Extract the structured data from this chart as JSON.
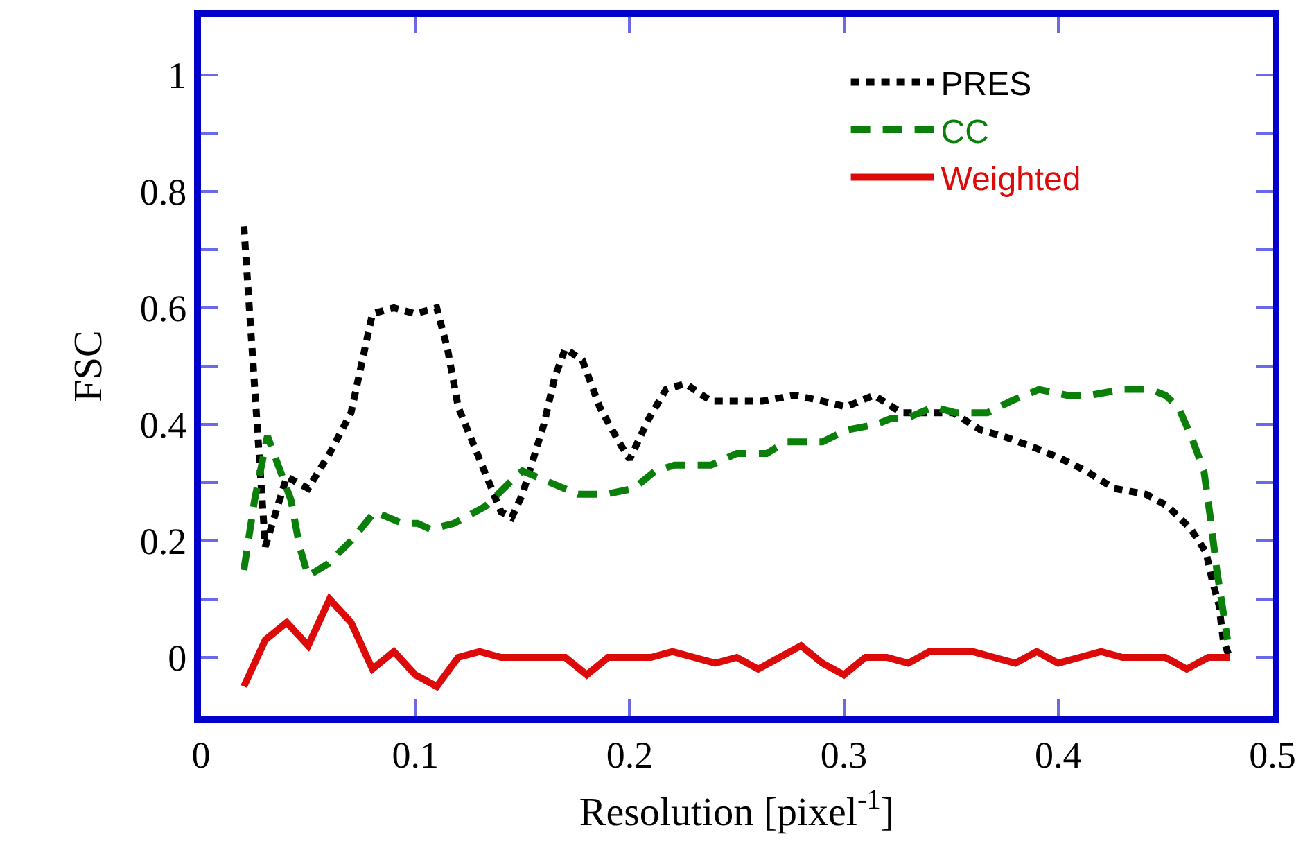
{
  "chart_data": {
    "type": "line",
    "xlabel": "Resolution [pixel$^{-1}$]",
    "ylabel": "FSC",
    "x": [
      0.02,
      0.03,
      0.04,
      0.05,
      0.06,
      0.07,
      0.08,
      0.09,
      0.1,
      0.11,
      0.12,
      0.13,
      0.14,
      0.15,
      0.16,
      0.17,
      0.18,
      0.19,
      0.2,
      0.21,
      0.22,
      0.23,
      0.24,
      0.25,
      0.26,
      0.27,
      0.28,
      0.29,
      0.3,
      0.31,
      0.32,
      0.33,
      0.34,
      0.35,
      0.36,
      0.37,
      0.38,
      0.39,
      0.4,
      0.41,
      0.42,
      0.43,
      0.44,
      0.45,
      0.46,
      0.47,
      0.48
    ],
    "series": [
      {
        "name": "PRES",
        "color": "#000000",
        "line_style": "dotted",
        "x": [
          0.02,
          0.03,
          0.04,
          0.05,
          0.06,
          0.07,
          0.08,
          0.09,
          0.1,
          0.11,
          0.115,
          0.12,
          0.13,
          0.14,
          0.145,
          0.15,
          0.16,
          0.165,
          0.17,
          0.178,
          0.186,
          0.195,
          0.2,
          0.209,
          0.217,
          0.226,
          0.238,
          0.25,
          0.262,
          0.277,
          0.29,
          0.301,
          0.314,
          0.327,
          0.338,
          0.351,
          0.364,
          0.374,
          0.389,
          0.402,
          0.413,
          0.426,
          0.441,
          0.451,
          0.462,
          0.469,
          0.472,
          0.475,
          0.477,
          0.48
        ],
        "values": [
          0.74,
          0.19,
          0.31,
          0.29,
          0.35,
          0.42,
          0.59,
          0.6,
          0.59,
          0.6,
          0.53,
          0.43,
          0.34,
          0.25,
          0.24,
          0.28,
          0.4,
          0.48,
          0.53,
          0.51,
          0.43,
          0.37,
          0.34,
          0.41,
          0.46,
          0.47,
          0.44,
          0.44,
          0.44,
          0.45,
          0.44,
          0.43,
          0.45,
          0.42,
          0.42,
          0.42,
          0.39,
          0.38,
          0.36,
          0.34,
          0.32,
          0.29,
          0.28,
          0.26,
          0.22,
          0.18,
          0.13,
          0.09,
          0.03,
          0.0
        ]
      },
      {
        "name": "CC",
        "color": "#0a800a",
        "line_style": "dashed",
        "x": [
          0.02,
          0.025,
          0.031,
          0.035,
          0.042,
          0.046,
          0.05,
          0.059,
          0.07,
          0.081,
          0.094,
          0.101,
          0.107,
          0.118,
          0.133,
          0.144,
          0.15,
          0.163,
          0.176,
          0.189,
          0.202,
          0.212,
          0.221,
          0.238,
          0.25,
          0.264,
          0.273,
          0.28,
          0.29,
          0.301,
          0.315,
          0.322,
          0.329,
          0.342,
          0.352,
          0.367,
          0.378,
          0.391,
          0.404,
          0.415,
          0.43,
          0.443,
          0.45,
          0.456,
          0.462,
          0.468,
          0.471,
          0.474,
          0.479
        ],
        "values": [
          0.15,
          0.27,
          0.38,
          0.34,
          0.27,
          0.19,
          0.14,
          0.16,
          0.2,
          0.25,
          0.23,
          0.23,
          0.22,
          0.23,
          0.26,
          0.3,
          0.32,
          0.3,
          0.28,
          0.28,
          0.29,
          0.32,
          0.33,
          0.33,
          0.35,
          0.35,
          0.37,
          0.37,
          0.37,
          0.39,
          0.4,
          0.41,
          0.41,
          0.43,
          0.42,
          0.42,
          0.44,
          0.46,
          0.45,
          0.45,
          0.46,
          0.46,
          0.45,
          0.43,
          0.38,
          0.32,
          0.24,
          0.15,
          0.03
        ]
      },
      {
        "name": "Weighted",
        "color": "#dd0a0a",
        "line_style": "solid",
        "values": [
          -0.05,
          0.03,
          0.06,
          0.02,
          0.1,
          0.06,
          -0.02,
          0.01,
          -0.03,
          -0.05,
          0,
          0.01,
          0,
          0,
          0,
          0,
          -0.03,
          0,
          0,
          0,
          0.01,
          0,
          -0.01,
          0,
          -0.02,
          0,
          0.02,
          -0.01,
          -0.03,
          0,
          0,
          -0.01,
          0.01,
          0.01,
          0.01,
          0,
          -0.01,
          0.01,
          -0.01,
          0,
          0.01,
          0,
          0,
          0,
          -0.02,
          0,
          0
        ]
      }
    ],
    "xlim": [
      0,
      0.5
    ],
    "xticks": [
      0,
      0.1,
      0.2,
      0.3,
      0.4,
      0.5
    ],
    "ylim": [
      -0.1,
      1.1
    ],
    "yticks": [
      0,
      {
        "value": 0.1,
        "label": null
      },
      0.2,
      {
        "value": 0.3,
        "label": null
      },
      0.4,
      {
        "value": 0.5,
        "label": null
      },
      0.6,
      {
        "value": 0.7,
        "label": null
      },
      0.8,
      {
        "value": 0.9,
        "label": null
      },
      1
    ],
    "legend": "top right",
    "grid": false,
    "marker": "none"
  }
}
